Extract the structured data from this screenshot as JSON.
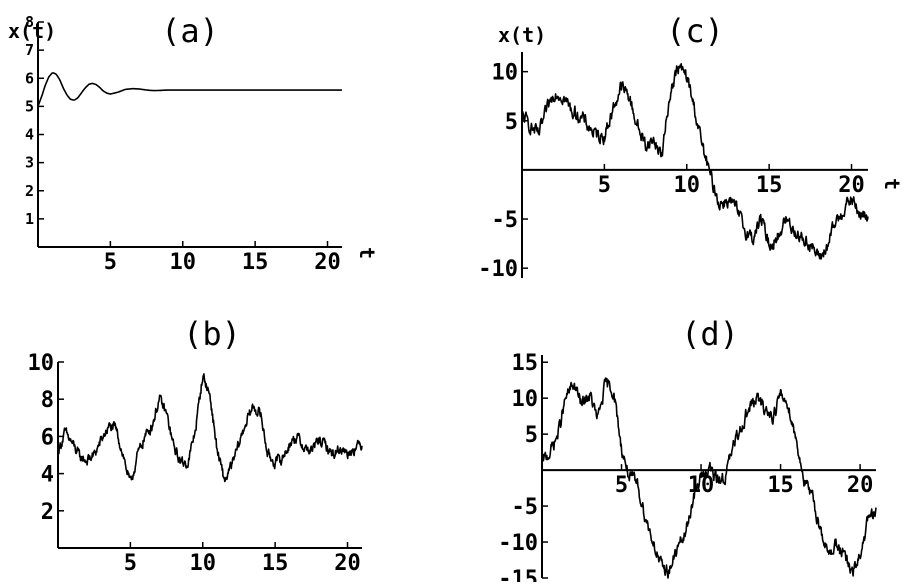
{
  "chart_data": [
    {
      "panel": "a",
      "type": "line",
      "title": "(a)",
      "ylabel": "x(t)",
      "xlabel": "t",
      "xlim": [
        0,
        21
      ],
      "ylim": [
        0,
        8
      ],
      "x_ticks": [
        5,
        10,
        15,
        20
      ],
      "y_ticks": [
        1,
        2,
        3,
        4,
        5,
        6,
        7,
        8
      ],
      "series": [
        {
          "x": [
            0,
            0.25,
            0.5,
            0.75,
            1.0,
            1.25,
            1.5,
            1.75,
            2.0,
            2.25,
            2.5,
            2.75,
            3.0,
            3.25,
            3.5,
            3.75,
            4.0,
            4.25,
            4.5,
            4.75,
            5.0,
            5.5,
            6.0,
            6.5,
            7.0,
            7.5,
            8.0,
            8.5,
            9.0,
            10,
            11,
            12,
            13,
            14,
            15,
            16,
            17,
            18,
            19,
            20,
            21
          ],
          "y": [
            5.0,
            5.35,
            5.75,
            6.05,
            6.2,
            6.15,
            5.95,
            5.65,
            5.4,
            5.25,
            5.22,
            5.3,
            5.48,
            5.65,
            5.78,
            5.82,
            5.78,
            5.68,
            5.55,
            5.47,
            5.44,
            5.5,
            5.6,
            5.63,
            5.62,
            5.58,
            5.56,
            5.57,
            5.58,
            5.58,
            5.58,
            5.58,
            5.58,
            5.58,
            5.58,
            5.58,
            5.58,
            5.58,
            5.58,
            5.58,
            5.58
          ]
        }
      ]
    },
    {
      "panel": "b",
      "type": "line",
      "title": "(b)",
      "xlim": [
        0,
        21
      ],
      "ylim": [
        0,
        10
      ],
      "x_ticks": [
        5,
        10,
        15,
        20
      ],
      "y_ticks": [
        2,
        4,
        6,
        8,
        10
      ],
      "noise": 0.28,
      "series": [
        {
          "x": [
            0,
            0.5,
            1,
            1.5,
            2,
            2.5,
            3,
            3.5,
            4,
            4.5,
            5,
            5.5,
            6,
            6.5,
            7,
            7.5,
            8,
            8.5,
            9,
            9.5,
            10,
            10.5,
            11,
            11.5,
            12,
            12.5,
            13,
            13.5,
            14,
            14.5,
            15,
            15.5,
            16,
            16.5,
            17,
            17.5,
            18,
            18.5,
            19,
            19.5,
            20,
            20.5,
            21
          ],
          "y": [
            5.2,
            6.2,
            5.6,
            4.9,
            4.7,
            5.0,
            5.8,
            6.5,
            6.4,
            5.0,
            3.4,
            5.0,
            6.0,
            6.6,
            8.0,
            7.2,
            5.4,
            4.6,
            4.6,
            6.4,
            9.3,
            8.2,
            5.2,
            3.6,
            4.4,
            5.6,
            6.8,
            7.6,
            7.2,
            5.0,
            4.6,
            4.8,
            5.6,
            6.0,
            5.4,
            5.2,
            5.8,
            5.5,
            5.0,
            5.4,
            5.1,
            5.4,
            5.6
          ]
        }
      ]
    },
    {
      "panel": "c",
      "type": "line",
      "title": "(c)",
      "ylabel": "x(t)",
      "xlabel": "t",
      "xlim": [
        0,
        21
      ],
      "ylim": [
        -11,
        12
      ],
      "x_ticks": [
        5,
        10,
        15,
        20
      ],
      "y_ticks": [
        -10,
        -5,
        5,
        10
      ],
      "noise": 0.7,
      "series": [
        {
          "x": [
            0,
            0.5,
            1,
            1.5,
            2,
            2.5,
            3,
            3.5,
            4,
            4.5,
            5,
            5.5,
            6,
            6.5,
            7,
            7.5,
            8,
            8.5,
            9,
            9.5,
            10,
            10.5,
            11,
            11.5,
            12,
            12.5,
            13,
            13.5,
            14,
            14.5,
            15,
            15.5,
            16,
            16.5,
            17,
            17.5,
            18,
            18.5,
            19,
            19.5,
            20,
            20.5,
            21
          ],
          "y": [
            5.5,
            4.5,
            3.5,
            6.0,
            8.0,
            7.5,
            6.0,
            5.5,
            4.5,
            3.5,
            3.5,
            6.0,
            8.5,
            7.5,
            4.5,
            2.5,
            3.0,
            1.5,
            8.0,
            10.5,
            9.5,
            6.0,
            2.0,
            -1.0,
            -3.5,
            -3.0,
            -4.0,
            -6.0,
            -7.0,
            -5.0,
            -7.5,
            -7.0,
            -5.0,
            -6.0,
            -7.0,
            -7.5,
            -9.0,
            -8.0,
            -5.5,
            -4.0,
            -3.0,
            -4.5,
            -5.0
          ]
        }
      ]
    },
    {
      "panel": "d",
      "type": "line",
      "title": "(d)",
      "xlim": [
        0,
        21
      ],
      "ylim": [
        -15,
        16
      ],
      "x_ticks": [
        5,
        10,
        15,
        20
      ],
      "y_ticks": [
        -15,
        -10,
        -5,
        5,
        10,
        15
      ],
      "noise": 0.9,
      "series": [
        {
          "x": [
            0,
            0.5,
            1,
            1.5,
            2,
            2.5,
            3,
            3.5,
            4,
            4.5,
            5,
            5.5,
            6,
            6.5,
            7,
            7.5,
            8,
            8.5,
            9,
            9.5,
            10,
            10.5,
            11,
            11.5,
            12,
            12.5,
            13,
            13.5,
            14,
            14.5,
            15,
            15.5,
            16,
            16.5,
            17,
            17.5,
            18,
            18.5,
            19,
            19.5,
            20,
            20.5,
            21
          ],
          "y": [
            1.0,
            2.5,
            5.0,
            10.0,
            12.0,
            9.0,
            10.5,
            7.0,
            12.0,
            11.0,
            3.0,
            -1.0,
            -2.0,
            -6.5,
            -10.0,
            -13.5,
            -14.0,
            -11.0,
            -9.0,
            -4.0,
            -1.0,
            0.5,
            -1.5,
            -1.0,
            3.0,
            6.0,
            8.5,
            10.0,
            8.5,
            7.5,
            10.5,
            9.0,
            4.0,
            -1.5,
            -4.0,
            -8.0,
            -12.0,
            -10.0,
            -12.0,
            -14.5,
            -12.0,
            -7.0,
            -6.0
          ]
        }
      ]
    }
  ]
}
